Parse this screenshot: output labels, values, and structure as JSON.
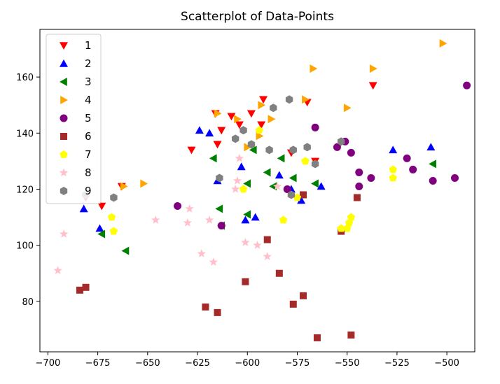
{
  "chart_data": {
    "type": "scatter",
    "title": "Scatterplot of Data-Points",
    "xlabel": "",
    "ylabel": "",
    "xlim": [
      -704,
      -486
    ],
    "ylim": [
      62,
      177
    ],
    "xticks": [
      -700,
      -675,
      -650,
      -625,
      -600,
      -575,
      -550,
      -525,
      -500
    ],
    "yticks": [
      80,
      100,
      120,
      140,
      160
    ],
    "grid": false,
    "legend_position": "top-left",
    "series": [
      {
        "name": "1",
        "marker": "triangle-down",
        "color": "#ff0000",
        "points": [
          [
            -681,
            117
          ],
          [
            -673,
            114
          ],
          [
            -663,
            121
          ],
          [
            -628,
            134
          ],
          [
            -616,
            147
          ],
          [
            -615,
            136
          ],
          [
            -613,
            141
          ],
          [
            -608,
            146
          ],
          [
            -604,
            143
          ],
          [
            -598,
            147
          ],
          [
            -593,
            143
          ],
          [
            -592,
            152
          ],
          [
            -578,
            133
          ],
          [
            -570,
            151
          ],
          [
            -566,
            130
          ],
          [
            -537,
            157
          ]
        ]
      },
      {
        "name": "2",
        "marker": "triangle-up",
        "color": "#0000ff",
        "points": [
          [
            -682,
            113
          ],
          [
            -674,
            106
          ],
          [
            -624,
            141
          ],
          [
            -619,
            140
          ],
          [
            -615,
            123
          ],
          [
            -603,
            128
          ],
          [
            -601,
            109
          ],
          [
            -596,
            110
          ],
          [
            -584,
            125
          ],
          [
            -578,
            120
          ],
          [
            -573,
            116
          ],
          [
            -563,
            121
          ],
          [
            -527,
            134
          ],
          [
            -508,
            135
          ]
        ]
      },
      {
        "name": "3",
        "marker": "triangle-left",
        "color": "#008000",
        "points": [
          [
            -673,
            104
          ],
          [
            -661,
            98
          ],
          [
            -617,
            131
          ],
          [
            -614,
            113
          ],
          [
            -613,
            107
          ],
          [
            -600,
            122
          ],
          [
            -600,
            111
          ],
          [
            -597,
            134
          ],
          [
            -590,
            126
          ],
          [
            -587,
            121
          ],
          [
            -583,
            131
          ],
          [
            -577,
            124
          ],
          [
            -566,
            122
          ],
          [
            -507,
            129
          ]
        ]
      },
      {
        "name": "4",
        "marker": "triangle-right",
        "color": "#ffa500",
        "points": [
          [
            -662,
            121
          ],
          [
            -652,
            122
          ],
          [
            -615,
            147
          ],
          [
            -605,
            145
          ],
          [
            -600,
            135
          ],
          [
            -594,
            139
          ],
          [
            -593,
            150
          ],
          [
            -588,
            145
          ],
          [
            -571,
            152
          ],
          [
            -567,
            163
          ],
          [
            -550,
            149
          ],
          [
            -537,
            163
          ],
          [
            -502,
            172
          ]
        ]
      },
      {
        "name": "5",
        "marker": "circle",
        "color": "#800080",
        "points": [
          [
            -635,
            114
          ],
          [
            -613,
            107
          ],
          [
            -580,
            120
          ],
          [
            -566,
            142
          ],
          [
            -555,
            135
          ],
          [
            -551,
            137
          ],
          [
            -548,
            133
          ],
          [
            -544,
            126
          ],
          [
            -544,
            121
          ],
          [
            -538,
            124
          ],
          [
            -520,
            131
          ],
          [
            -517,
            127
          ],
          [
            -507,
            123
          ],
          [
            -496,
            124
          ],
          [
            -490,
            157
          ]
        ]
      },
      {
        "name": "6",
        "marker": "square",
        "color": "#a52a2a",
        "points": [
          [
            -684,
            84
          ],
          [
            -681,
            85
          ],
          [
            -621,
            78
          ],
          [
            -615,
            76
          ],
          [
            -601,
            87
          ],
          [
            -590,
            102
          ],
          [
            -584,
            90
          ],
          [
            -577,
            79
          ],
          [
            -572,
            82
          ],
          [
            -572,
            118
          ],
          [
            -565,
            67
          ],
          [
            -553,
            105
          ],
          [
            -548,
            68
          ],
          [
            -545,
            117
          ]
        ]
      },
      {
        "name": "7",
        "marker": "pentagon",
        "color": "#ffff00",
        "points": [
          [
            -668,
            110
          ],
          [
            -667,
            105
          ],
          [
            -602,
            120
          ],
          [
            -594,
            141
          ],
          [
            -582,
            109
          ],
          [
            -575,
            117
          ],
          [
            -571,
            130
          ],
          [
            -553,
            106
          ],
          [
            -550,
            106
          ],
          [
            -549,
            108
          ],
          [
            -548,
            110
          ],
          [
            -527,
            124
          ],
          [
            -527,
            127
          ]
        ]
      },
      {
        "name": "8",
        "marker": "star",
        "color": "#ffc0cb",
        "points": [
          [
            -695,
            91
          ],
          [
            -692,
            104
          ],
          [
            -646,
            109
          ],
          [
            -630,
            108
          ],
          [
            -629,
            113
          ],
          [
            -623,
            97
          ],
          [
            -619,
            109
          ],
          [
            -617,
            94
          ],
          [
            -606,
            120
          ],
          [
            -605,
            123
          ],
          [
            -604,
            131
          ],
          [
            -601,
            101
          ],
          [
            -595,
            100
          ],
          [
            -590,
            96
          ],
          [
            -585,
            121
          ]
        ]
      },
      {
        "name": "9",
        "marker": "hexagon",
        "color": "#808080",
        "points": [
          [
            -681,
            118
          ],
          [
            -667,
            117
          ],
          [
            -614,
            124
          ],
          [
            -606,
            138
          ],
          [
            -602,
            141
          ],
          [
            -598,
            136
          ],
          [
            -589,
            134
          ],
          [
            -587,
            149
          ],
          [
            -579,
            152
          ],
          [
            -578,
            118
          ],
          [
            -577,
            134
          ],
          [
            -570,
            135
          ],
          [
            -566,
            129
          ],
          [
            -553,
            137
          ]
        ]
      }
    ]
  }
}
